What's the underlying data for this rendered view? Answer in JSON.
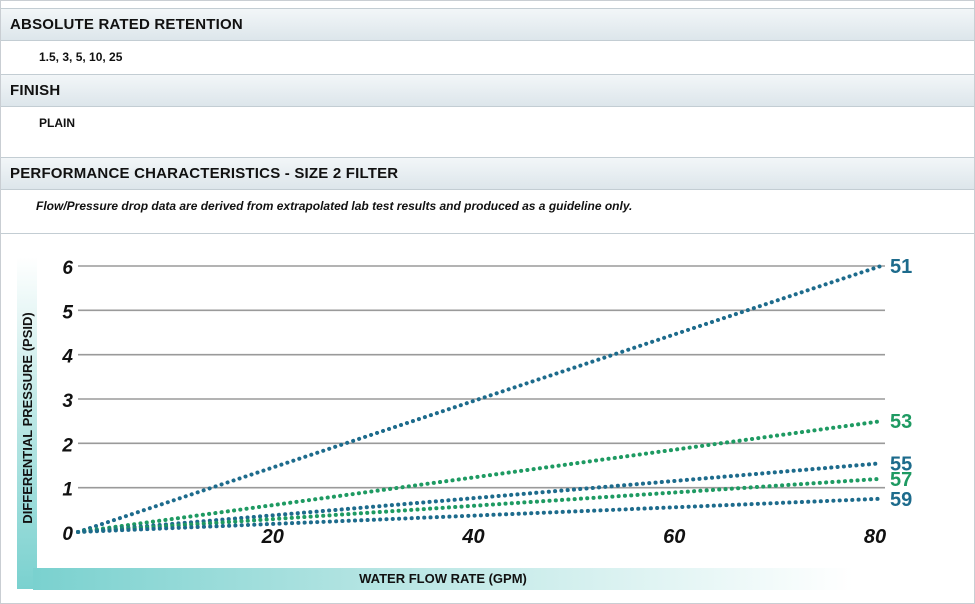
{
  "spec_rows": [
    {
      "header": "ABSOLUTE RATED RETENTION",
      "value": "1.5, 3, 5, 10, 25"
    },
    {
      "header": "FINISH",
      "value": "PLAIN"
    },
    {
      "header": "PERFORMANCE CHARACTERISTICS - SIZE 2 FILTER",
      "value": "Flow/Pressure drop data are derived from extrapolated lab test results and produced as a guideline only."
    }
  ],
  "colors": {
    "blue": "#1d6b8c",
    "green": "#1e9a62",
    "grid": "#9a9a9a"
  },
  "chart_data": {
    "type": "line",
    "title": "",
    "xlabel": "WATER FLOW RATE (GPM)",
    "ylabel": "DIFFERENTIAL PRESSURE (PSID)",
    "xlim": [
      0,
      80
    ],
    "ylim": [
      0,
      6
    ],
    "x_ticks": [
      "0",
      "20",
      "40",
      "60",
      "80"
    ],
    "y_ticks": [
      "0",
      "1",
      "2",
      "3",
      "4",
      "5",
      "6"
    ],
    "grid": "horizontal",
    "series": [
      {
        "name": "51",
        "color": "#1d6b8c",
        "x": [
          0,
          80
        ],
        "y": [
          0,
          6.0
        ]
      },
      {
        "name": "53",
        "color": "#1e9a62",
        "x": [
          0,
          80
        ],
        "y": [
          0,
          2.5
        ]
      },
      {
        "name": "55",
        "color": "#1d6b8c",
        "x": [
          0,
          80
        ],
        "y": [
          0,
          1.55
        ]
      },
      {
        "name": "57",
        "color": "#1e9a62",
        "x": [
          0,
          80
        ],
        "y": [
          0,
          1.2
        ]
      },
      {
        "name": "59",
        "color": "#1d6b8c",
        "x": [
          0,
          80
        ],
        "y": [
          0,
          0.75
        ]
      }
    ]
  }
}
